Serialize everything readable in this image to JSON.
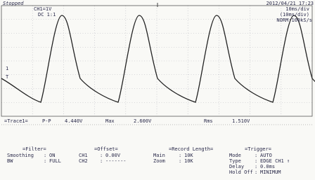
{
  "header": {
    "status": "Stopped",
    "channel": "CH1=1V",
    "coupling": "DC 1:1",
    "timestamp": "2012/04/21 17:23",
    "timebase": "10ms/div",
    "zoom_timebase": "(10ms/div)",
    "sample_rate": "NORM:100kS/s"
  },
  "markers": {
    "channel": "1",
    "trigger": "T"
  },
  "measurements": {
    "trace": "=Trace1=",
    "items": [
      {
        "label": "P-P",
        "value": "4.440V"
      },
      {
        "label": "Max",
        "value": "2.600V"
      },
      {
        "label": "Rms",
        "value": "1.510V"
      }
    ]
  },
  "settings": [
    {
      "title": "=Filter=",
      "rows": [
        [
          "Smoothing",
          "ON"
        ],
        [
          "BW",
          "FULL"
        ]
      ]
    },
    {
      "title": "=Offset=",
      "rows": [
        [
          "CH1",
          "0.00V"
        ],
        [
          "CH2",
          "-------"
        ]
      ]
    },
    {
      "title": "=Record Length=",
      "rows": [
        [
          "Main",
          "10K"
        ],
        [
          "Zoom",
          "10K"
        ]
      ]
    },
    {
      "title": "=Trigger=",
      "rows": [
        [
          "Mode",
          "AUTO"
        ],
        [
          "Type",
          "EDGE CH1 ↑"
        ],
        [
          "Delay",
          "0.0ms"
        ],
        [
          "Hold Off",
          "MINIMUM"
        ]
      ]
    }
  ]
}
